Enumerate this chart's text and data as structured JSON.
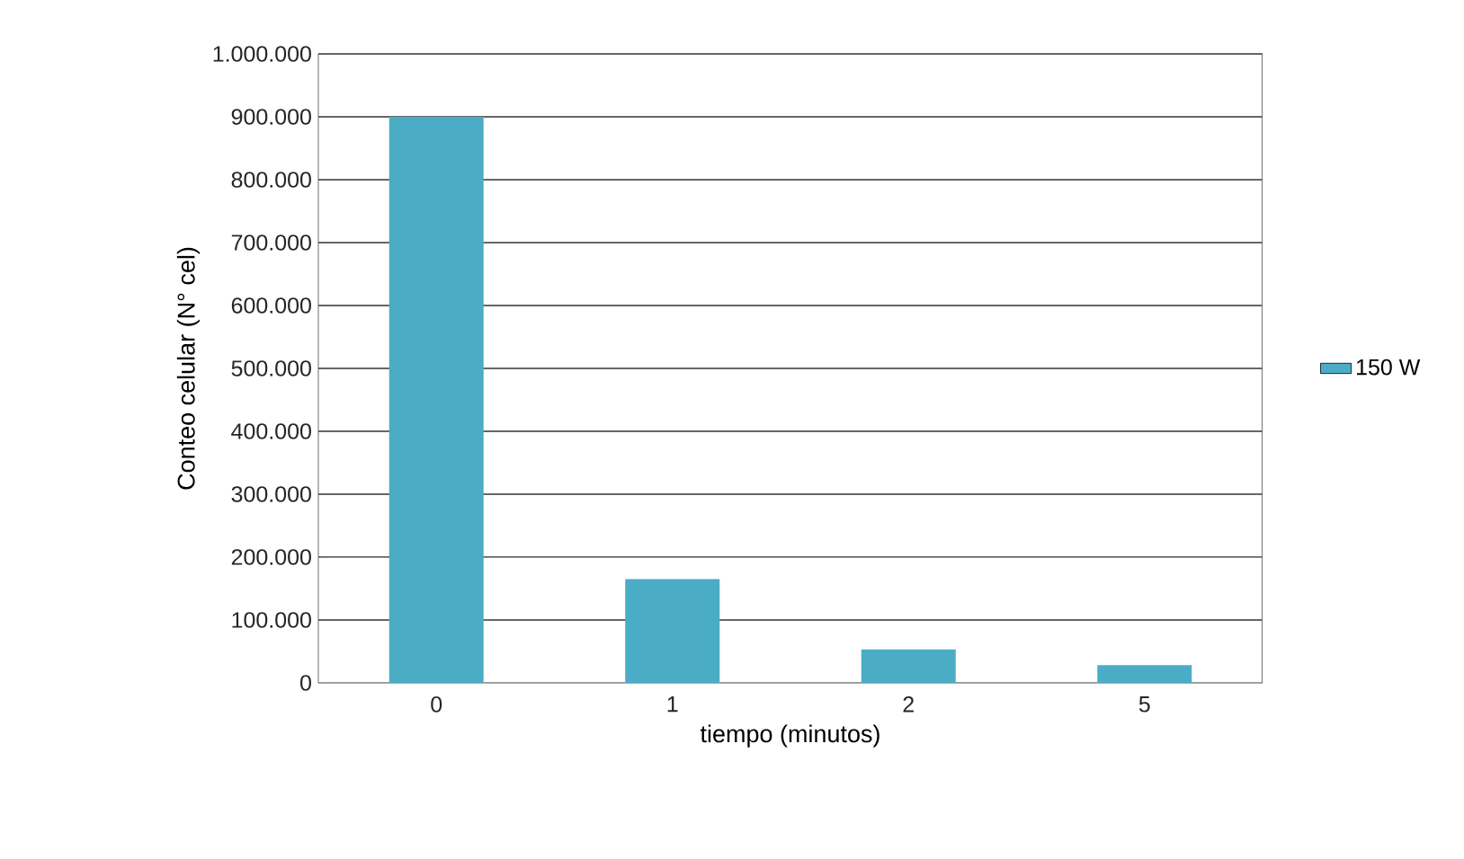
{
  "chart_data": {
    "type": "bar",
    "xlabel": "tiempo (minutos)",
    "ylabel": "Conteo celular (N° cel)",
    "categories": [
      "0",
      "1",
      "2",
      "5"
    ],
    "series": [
      {
        "name": "150 W",
        "color": "#4bacc6",
        "values": [
          900000,
          165000,
          53000,
          28000
        ]
      }
    ],
    "ylim": [
      0,
      1000000
    ],
    "yticks": [
      {
        "value": 0,
        "label": "0"
      },
      {
        "value": 100000,
        "label": "100.000"
      },
      {
        "value": 200000,
        "label": "200.000"
      },
      {
        "value": 300000,
        "label": "300.000"
      },
      {
        "value": 400000,
        "label": "400.000"
      },
      {
        "value": 500000,
        "label": "500.000"
      },
      {
        "value": 600000,
        "label": "600.000"
      },
      {
        "value": 700000,
        "label": "700.000"
      },
      {
        "value": 800000,
        "label": "800.000"
      },
      {
        "value": 900000,
        "label": "900.000"
      },
      {
        "value": 1000000,
        "label": "1.000.000"
      }
    ],
    "grid": "y",
    "legend": "right"
  }
}
